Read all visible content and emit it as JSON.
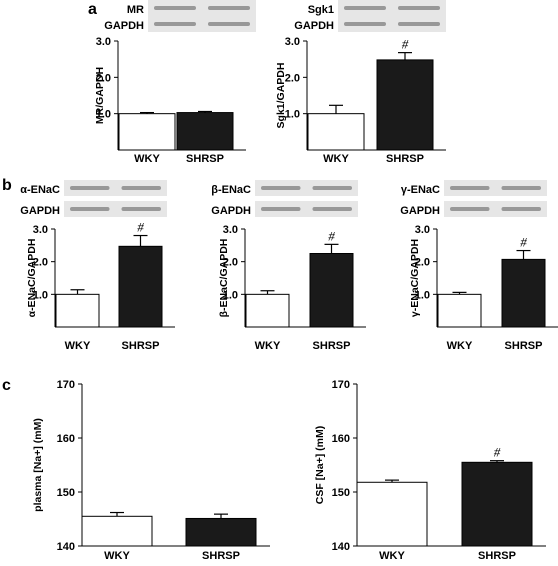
{
  "panel_labels": [
    "a",
    "b",
    "c"
  ],
  "chart_data": [
    {
      "id": "mr",
      "panel": "a",
      "type": "bar",
      "ylabel": "MR/GAPDH",
      "blot_labels": [
        "MR",
        "GAPDH"
      ],
      "categories": [
        "WKY",
        "SHRSP"
      ],
      "values": [
        1.0,
        1.03
      ],
      "errors": [
        0.03,
        0.03
      ],
      "significance": [
        "",
        ""
      ],
      "ylim": [
        0,
        3.0
      ],
      "yticks": [
        "1.0",
        "2.0",
        "3.0"
      ]
    },
    {
      "id": "sgk1",
      "panel": "a",
      "type": "bar",
      "ylabel": "Sgk1/GAPDH",
      "blot_labels": [
        "Sgk1",
        "GAPDH"
      ],
      "categories": [
        "WKY",
        "SHRSP"
      ],
      "values": [
        1.0,
        2.48
      ],
      "errors": [
        0.23,
        0.2
      ],
      "significance": [
        "",
        "#"
      ],
      "ylim": [
        0,
        3.0
      ],
      "yticks": [
        "1.0",
        "2.0",
        "3.0"
      ]
    },
    {
      "id": "aenac",
      "panel": "b",
      "type": "bar",
      "ylabel": "α-ENaC/GAPDH",
      "blot_labels": [
        "α-ENaC",
        "GAPDH"
      ],
      "categories": [
        "WKY",
        "SHRSP"
      ],
      "values": [
        1.0,
        2.47
      ],
      "errors": [
        0.14,
        0.33
      ],
      "significance": [
        "",
        "#"
      ],
      "ylim": [
        0,
        3.0
      ],
      "yticks": [
        "1.0",
        "2.0",
        "3.0"
      ]
    },
    {
      "id": "benac",
      "panel": "b",
      "type": "bar",
      "ylabel": "β-ENaC/GAPDH",
      "blot_labels": [
        "β-ENaC",
        "GAPDH"
      ],
      "categories": [
        "WKY",
        "SHRSP"
      ],
      "values": [
        1.0,
        2.25
      ],
      "errors": [
        0.11,
        0.28
      ],
      "significance": [
        "",
        "#"
      ],
      "ylim": [
        0,
        3.0
      ],
      "yticks": [
        "1.0",
        "2.0",
        "3.0"
      ]
    },
    {
      "id": "genac",
      "panel": "b",
      "type": "bar",
      "ylabel": "γ-ENaC/GAPDH",
      "blot_labels": [
        "γ-ENaC",
        "GAPDH"
      ],
      "categories": [
        "WKY",
        "SHRSP"
      ],
      "values": [
        1.0,
        2.07
      ],
      "errors": [
        0.06,
        0.27
      ],
      "significance": [
        "",
        "#"
      ],
      "ylim": [
        0,
        3.0
      ],
      "yticks": [
        "1.0",
        "2.0",
        "3.0"
      ]
    },
    {
      "id": "plasma",
      "panel": "c",
      "type": "bar",
      "ylabel": "plasma [Na+] (mM)",
      "blot_labels": [],
      "categories": [
        "WKY",
        "SHRSP"
      ],
      "values": [
        145.5,
        145.1
      ],
      "errors": [
        0.7,
        0.8
      ],
      "significance": [
        "",
        ""
      ],
      "ylim": [
        140,
        170
      ],
      "yticks": [
        "140",
        "150",
        "160",
        "170"
      ]
    },
    {
      "id": "csf",
      "panel": "c",
      "type": "bar",
      "ylabel": "CSF [Na+] (mM)",
      "blot_labels": [],
      "categories": [
        "WKY",
        "SHRSP"
      ],
      "values": [
        151.8,
        155.5
      ],
      "errors": [
        0.4,
        0.3
      ],
      "significance": [
        "",
        "#"
      ],
      "ylim": [
        140,
        170
      ],
      "yticks": [
        "140",
        "150",
        "160",
        "170"
      ]
    }
  ],
  "colors": {
    "wky_fill": "#ffffff",
    "shrsp_fill": "#1a1a1a",
    "axis": "#000000",
    "blot_bg": "#e6e6e6",
    "blot_band": "#8a8a8a"
  }
}
